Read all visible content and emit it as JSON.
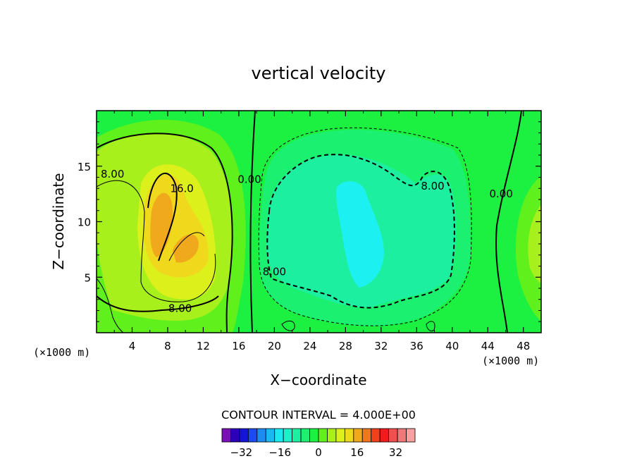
{
  "chart_data": {
    "type": "heatmap",
    "title": "vertical velocity",
    "xlabel": "X−coordinate",
    "ylabel": "Z−coordinate",
    "x_unit_left": "(×1000 m)",
    "x_unit_right": "(×1000 m)",
    "xlim": [
      0,
      50
    ],
    "ylim": [
      0,
      20
    ],
    "x_ticks": [
      4,
      8,
      12,
      16,
      20,
      24,
      28,
      32,
      36,
      40,
      44,
      48
    ],
    "x_tick_labels": [
      "4",
      "8",
      "12",
      "16",
      "20",
      "24",
      "28",
      "32",
      "36",
      "40",
      "44",
      "48"
    ],
    "y_ticks": [
      5,
      10,
      15
    ],
    "y_tick_labels": [
      "5",
      "10",
      "15"
    ],
    "contour_interval_text": "CONTOUR INTERVAL = 4.000E+00",
    "contour_interval": 4,
    "contour_labels": [
      {
        "text": "8.00",
        "x": 1.8,
        "z": 14.3
      },
      {
        "text": "16.0",
        "x": 9.6,
        "z": 13.0
      },
      {
        "text": "0.00",
        "x": 17.2,
        "z": 13.8
      },
      {
        "text": "8.00",
        "x": 37.8,
        "z": 13.2
      },
      {
        "text": "0.00",
        "x": 45.5,
        "z": 12.5
      },
      {
        "text": "8.00",
        "x": 20.0,
        "z": 5.5
      },
      {
        "text": "8.00",
        "x": 9.4,
        "z": 2.2
      }
    ],
    "colorbar": {
      "colors": [
        "#7a10b8",
        "#2c00b8",
        "#1414d8",
        "#1c4cf0",
        "#1c8cf0",
        "#1cb8f0",
        "#1ce8f0",
        "#1cf0c8",
        "#1cf0a0",
        "#1cf070",
        "#1cf040",
        "#60f01c",
        "#a8f01c",
        "#dcf01c",
        "#f0d81c",
        "#f0a81c",
        "#f0781c",
        "#f0401c",
        "#f01c1c",
        "#f05050",
        "#f07878",
        "#f8a0a0"
      ],
      "tick_values": [
        -32,
        -16,
        0,
        16,
        32
      ],
      "tick_labels": [
        "−32",
        "−16",
        "0",
        "16",
        "32"
      ],
      "min": -40,
      "max": 40
    }
  }
}
